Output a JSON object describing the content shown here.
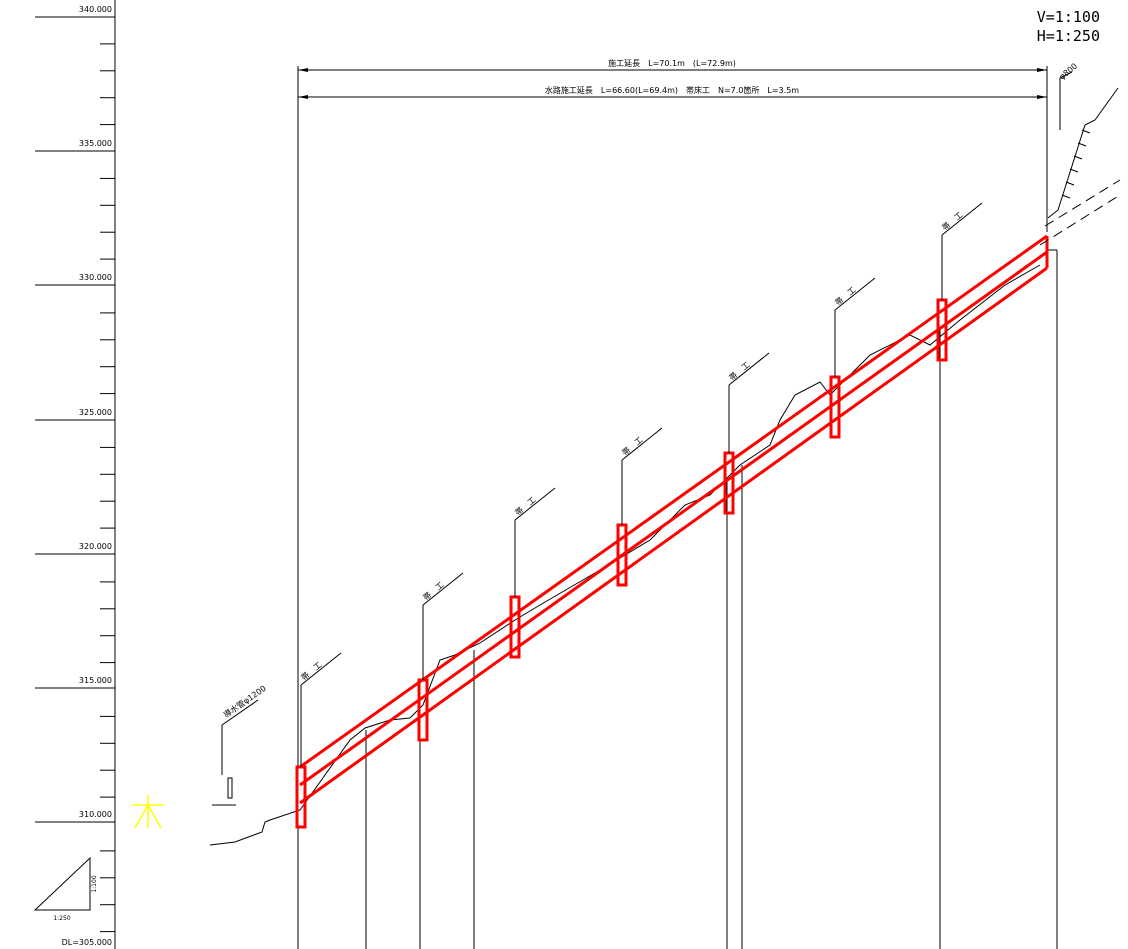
{
  "scale": {
    "vertical": "V=1:100",
    "horizontal": "H=1:250"
  },
  "elevation_axis": {
    "labels": [
      "340.000",
      "335.000",
      "330.000",
      "325.000",
      "320.000",
      "315.000",
      "310.000"
    ],
    "datum": "DL=305.000"
  },
  "dimensions": [
    "施工延長　L=70.1m　(L=72.9m)",
    "水路施工延長　L=66.60(L=69.4m)　帯床工　N=7.0箇所　L=3.5m"
  ],
  "structures": [
    "帯　工",
    "帯　工",
    "帯　工",
    "帯　工",
    "帯　工",
    "帯　工",
    "帯　工"
  ],
  "pipe_labels": {
    "left": "導水管φ1200",
    "right": "φ800"
  },
  "scale_triangle": {
    "horizontal": "1:250",
    "vertical": "1:100"
  }
}
